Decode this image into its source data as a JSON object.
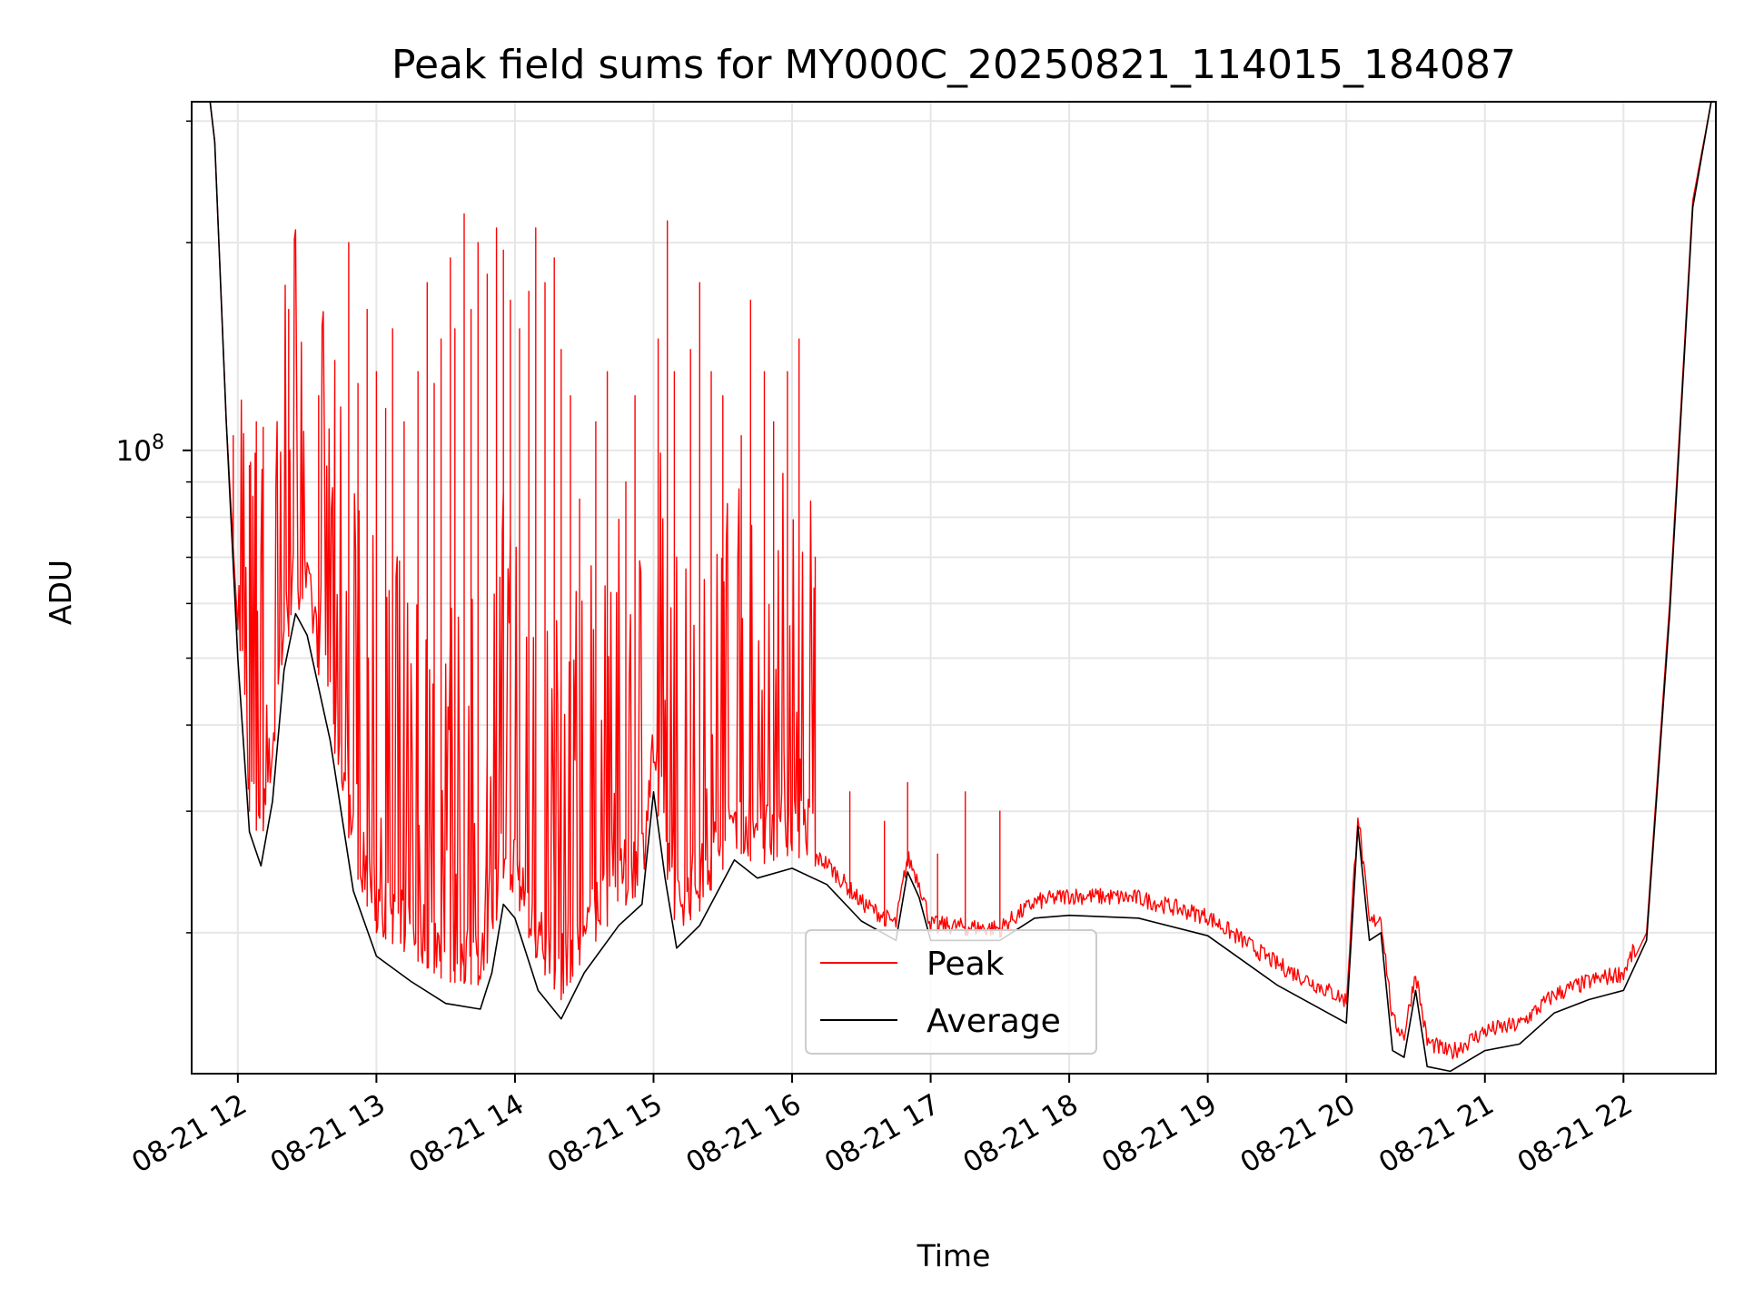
{
  "chart_data": {
    "type": "line",
    "title": "Peak field sums for MY000C_20250821_114015_184087",
    "xlabel": "Time",
    "ylabel": "ADU",
    "yscale": "log",
    "grid": true,
    "legend_position": "lower-center",
    "xlim": [
      "2025-08-21 11:40",
      "2025-08-21 22:40"
    ],
    "ylim": [
      12500000,
      320000000
    ],
    "x_ticks": [
      {
        "time": "2025-08-21 12:00",
        "label": "08-21 12"
      },
      {
        "time": "2025-08-21 13:00",
        "label": "08-21 13"
      },
      {
        "time": "2025-08-21 14:00",
        "label": "08-21 14"
      },
      {
        "time": "2025-08-21 15:00",
        "label": "08-21 15"
      },
      {
        "time": "2025-08-21 16:00",
        "label": "08-21 16"
      },
      {
        "time": "2025-08-21 17:00",
        "label": "08-21 17"
      },
      {
        "time": "2025-08-21 18:00",
        "label": "08-21 18"
      },
      {
        "time": "2025-08-21 19:00",
        "label": "08-21 19"
      },
      {
        "time": "2025-08-21 20:00",
        "label": "08-21 20"
      },
      {
        "time": "2025-08-21 21:00",
        "label": "08-21 21"
      },
      {
        "time": "2025-08-21 22:00",
        "label": "08-21 22"
      }
    ],
    "y_major_tick": {
      "value": 100000000,
      "label_base": "10",
      "label_exp": "8"
    },
    "y_minor_ticks": [
      20000000,
      30000000,
      40000000,
      50000000,
      60000000,
      70000000,
      80000000,
      90000000,
      200000000,
      300000000
    ],
    "series": [
      {
        "name": "Peak",
        "color": "#ff0000",
        "baseline": [
          [
            "2025-08-21 11:48",
            320000000
          ],
          [
            "2025-08-21 11:50",
            280000000
          ],
          [
            "2025-08-21 11:55",
            110000000
          ],
          [
            "2025-08-21 12:00",
            55000000
          ],
          [
            "2025-08-21 12:05",
            30000000
          ],
          [
            "2025-08-21 12:10",
            27000000
          ],
          [
            "2025-08-21 12:15",
            33000000
          ],
          [
            "2025-08-21 12:20",
            50000000
          ],
          [
            "2025-08-21 12:25",
            60000000
          ],
          [
            "2025-08-21 12:30",
            56000000
          ],
          [
            "2025-08-21 12:40",
            40000000
          ],
          [
            "2025-08-21 12:50",
            25000000
          ],
          [
            "2025-08-21 13:00",
            20000000
          ],
          [
            "2025-08-21 13:15",
            18500000
          ],
          [
            "2025-08-21 13:30",
            17000000
          ],
          [
            "2025-08-21 13:45",
            16800000
          ],
          [
            "2025-08-21 13:50",
            19000000
          ],
          [
            "2025-08-21 13:55",
            24000000
          ],
          [
            "2025-08-21 14:00",
            22500000
          ],
          [
            "2025-08-21 14:10",
            18000000
          ],
          [
            "2025-08-21 14:20",
            16000000
          ],
          [
            "2025-08-21 14:30",
            18500000
          ],
          [
            "2025-08-21 14:45",
            21500000
          ],
          [
            "2025-08-21 14:55",
            23000000
          ],
          [
            "2025-08-21 15:00",
            33000000
          ],
          [
            "2025-08-21 15:05",
            25000000
          ],
          [
            "2025-08-21 15:10",
            20000000
          ],
          [
            "2025-08-21 15:20",
            21500000
          ],
          [
            "2025-08-21 15:35",
            26500000
          ],
          [
            "2025-08-21 15:45",
            25000000
          ],
          [
            "2025-08-21 16:00",
            26000000
          ],
          [
            "2025-08-21 16:15",
            24500000
          ],
          [
            "2025-08-21 16:30",
            21500000
          ],
          [
            "2025-08-21 16:45",
            20000000
          ],
          [
            "2025-08-21 16:50",
            25000000
          ],
          [
            "2025-08-21 16:55",
            23000000
          ],
          [
            "2025-08-21 17:00",
            20000000
          ],
          [
            "2025-08-21 17:15",
            19800000
          ],
          [
            "2025-08-21 17:30",
            19700000
          ],
          [
            "2025-08-21 17:45",
            21500000
          ],
          [
            "2025-08-21 18:00",
            22000000
          ],
          [
            "2025-08-21 18:30",
            21800000
          ],
          [
            "2025-08-21 19:00",
            20500000
          ],
          [
            "2025-08-21 19:30",
            17500000
          ],
          [
            "2025-08-21 20:00",
            15500000
          ],
          [
            "2025-08-21 20:05",
            29000000
          ],
          [
            "2025-08-21 20:10",
            20000000
          ],
          [
            "2025-08-21 20:15",
            20500000
          ],
          [
            "2025-08-21 20:20",
            14500000
          ],
          [
            "2025-08-21 20:25",
            13800000
          ],
          [
            "2025-08-21 20:30",
            17000000
          ],
          [
            "2025-08-21 20:35",
            13500000
          ],
          [
            "2025-08-21 20:45",
            13000000
          ],
          [
            "2025-08-21 21:00",
            14000000
          ],
          [
            "2025-08-21 21:15",
            14300000
          ],
          [
            "2025-08-21 21:30",
            15800000
          ],
          [
            "2025-08-21 21:45",
            16500000
          ],
          [
            "2025-08-21 22:00",
            17000000
          ],
          [
            "2025-08-21 22:10",
            20000000
          ],
          [
            "2025-08-21 22:20",
            60000000
          ],
          [
            "2025-08-21 22:30",
            230000000
          ],
          [
            "2025-08-21 22:38",
            320000000
          ]
        ],
        "spikes": [
          [
            "2025-08-21 11:58",
            105000000
          ],
          [
            "2025-08-21 12:05",
            95000000
          ],
          [
            "2025-08-21 12:08",
            110000000
          ],
          [
            "2025-08-21 12:11",
            108000000
          ],
          [
            "2025-08-21 12:22",
            160000000
          ],
          [
            "2025-08-21 12:35",
            120000000
          ],
          [
            "2025-08-21 12:42",
            135000000
          ],
          [
            "2025-08-21 12:48",
            200000000
          ],
          [
            "2025-08-21 12:52",
            125000000
          ],
          [
            "2025-08-21 12:56",
            160000000
          ],
          [
            "2025-08-21 13:00",
            130000000
          ],
          [
            "2025-08-21 13:04",
            115000000
          ],
          [
            "2025-08-21 13:07",
            150000000
          ],
          [
            "2025-08-21 13:12",
            110000000
          ],
          [
            "2025-08-21 13:18",
            130000000
          ],
          [
            "2025-08-21 13:22",
            175000000
          ],
          [
            "2025-08-21 13:25",
            125000000
          ],
          [
            "2025-08-21 13:28",
            145000000
          ],
          [
            "2025-08-21 13:32",
            190000000
          ],
          [
            "2025-08-21 13:34",
            150000000
          ],
          [
            "2025-08-21 13:38",
            220000000
          ],
          [
            "2025-08-21 13:41",
            160000000
          ],
          [
            "2025-08-21 13:44",
            200000000
          ],
          [
            "2025-08-21 13:48",
            180000000
          ],
          [
            "2025-08-21 13:52",
            210000000
          ],
          [
            "2025-08-21 13:55",
            195000000
          ],
          [
            "2025-08-21 13:58",
            165000000
          ],
          [
            "2025-08-21 14:02",
            150000000
          ],
          [
            "2025-08-21 14:06",
            170000000
          ],
          [
            "2025-08-21 14:09",
            210000000
          ],
          [
            "2025-08-21 14:13",
            175000000
          ],
          [
            "2025-08-21 14:17",
            190000000
          ],
          [
            "2025-08-21 14:20",
            140000000
          ],
          [
            "2025-08-21 14:24",
            120000000
          ],
          [
            "2025-08-21 14:28",
            85000000
          ],
          [
            "2025-08-21 14:35",
            110000000
          ],
          [
            "2025-08-21 14:40",
            130000000
          ],
          [
            "2025-08-21 14:48",
            90000000
          ],
          [
            "2025-08-21 14:52",
            120000000
          ],
          [
            "2025-08-21 15:02",
            145000000
          ],
          [
            "2025-08-21 15:06",
            215000000
          ],
          [
            "2025-08-21 15:09",
            130000000
          ],
          [
            "2025-08-21 15:16",
            140000000
          ],
          [
            "2025-08-21 15:20",
            175000000
          ],
          [
            "2025-08-21 15:25",
            130000000
          ],
          [
            "2025-08-21 15:30",
            120000000
          ],
          [
            "2025-08-21 15:38",
            105000000
          ],
          [
            "2025-08-21 15:42",
            165000000
          ],
          [
            "2025-08-21 15:48",
            130000000
          ],
          [
            "2025-08-21 15:52",
            110000000
          ],
          [
            "2025-08-21 15:58",
            130000000
          ],
          [
            "2025-08-21 16:03",
            145000000
          ],
          [
            "2025-08-21 16:10",
            70000000
          ],
          [
            "2025-08-21 16:25",
            32000000
          ],
          [
            "2025-08-21 16:40",
            29000000
          ],
          [
            "2025-08-21 16:50",
            33000000
          ],
          [
            "2025-08-21 17:03",
            26000000
          ],
          [
            "2025-08-21 17:15",
            32000000
          ],
          [
            "2025-08-21 17:30",
            30000000
          ]
        ]
      },
      {
        "name": "Average",
        "color": "#000000",
        "points": [
          [
            "2025-08-21 11:48",
            320000000
          ],
          [
            "2025-08-21 11:50",
            280000000
          ],
          [
            "2025-08-21 11:55",
            110000000
          ],
          [
            "2025-08-21 12:00",
            50000000
          ],
          [
            "2025-08-21 12:05",
            28000000
          ],
          [
            "2025-08-21 12:10",
            25000000
          ],
          [
            "2025-08-21 12:15",
            31000000
          ],
          [
            "2025-08-21 12:20",
            48000000
          ],
          [
            "2025-08-21 12:25",
            58000000
          ],
          [
            "2025-08-21 12:30",
            54000000
          ],
          [
            "2025-08-21 12:40",
            38000000
          ],
          [
            "2025-08-21 12:50",
            23000000
          ],
          [
            "2025-08-21 13:00",
            18500000
          ],
          [
            "2025-08-21 13:15",
            17000000
          ],
          [
            "2025-08-21 13:30",
            15800000
          ],
          [
            "2025-08-21 13:45",
            15500000
          ],
          [
            "2025-08-21 13:50",
            17500000
          ],
          [
            "2025-08-21 13:55",
            22000000
          ],
          [
            "2025-08-21 14:00",
            21000000
          ],
          [
            "2025-08-21 14:10",
            16500000
          ],
          [
            "2025-08-21 14:20",
            15000000
          ],
          [
            "2025-08-21 14:30",
            17500000
          ],
          [
            "2025-08-21 14:45",
            20500000
          ],
          [
            "2025-08-21 14:55",
            22000000
          ],
          [
            "2025-08-21 15:00",
            32000000
          ],
          [
            "2025-08-21 15:05",
            24000000
          ],
          [
            "2025-08-21 15:10",
            19000000
          ],
          [
            "2025-08-21 15:20",
            20500000
          ],
          [
            "2025-08-21 15:35",
            25500000
          ],
          [
            "2025-08-21 15:45",
            24000000
          ],
          [
            "2025-08-21 16:00",
            24800000
          ],
          [
            "2025-08-21 16:15",
            23500000
          ],
          [
            "2025-08-21 16:30",
            20800000
          ],
          [
            "2025-08-21 16:45",
            19500000
          ],
          [
            "2025-08-21 16:50",
            24500000
          ],
          [
            "2025-08-21 16:55",
            22500000
          ],
          [
            "2025-08-21 17:00",
            19500000
          ],
          [
            "2025-08-21 17:15",
            19500000
          ],
          [
            "2025-08-21 17:30",
            19500000
          ],
          [
            "2025-08-21 17:45",
            21000000
          ],
          [
            "2025-08-21 18:00",
            21200000
          ],
          [
            "2025-08-21 18:30",
            21000000
          ],
          [
            "2025-08-21 19:00",
            19800000
          ],
          [
            "2025-08-21 19:30",
            16800000
          ],
          [
            "2025-08-21 20:00",
            14800000
          ],
          [
            "2025-08-21 20:05",
            28500000
          ],
          [
            "2025-08-21 20:10",
            19500000
          ],
          [
            "2025-08-21 20:15",
            20000000
          ],
          [
            "2025-08-21 20:20",
            13500000
          ],
          [
            "2025-08-21 20:25",
            13200000
          ],
          [
            "2025-08-21 20:30",
            16500000
          ],
          [
            "2025-08-21 20:35",
            12800000
          ],
          [
            "2025-08-21 20:45",
            12600000
          ],
          [
            "2025-08-21 21:00",
            13500000
          ],
          [
            "2025-08-21 21:15",
            13800000
          ],
          [
            "2025-08-21 21:30",
            15300000
          ],
          [
            "2025-08-21 21:45",
            16000000
          ],
          [
            "2025-08-21 22:00",
            16500000
          ],
          [
            "2025-08-21 22:10",
            19500000
          ],
          [
            "2025-08-21 22:20",
            58000000
          ],
          [
            "2025-08-21 22:30",
            225000000
          ],
          [
            "2025-08-21 22:38",
            320000000
          ]
        ]
      }
    ]
  },
  "legend": {
    "peak_label": "Peak",
    "average_label": "Average"
  }
}
